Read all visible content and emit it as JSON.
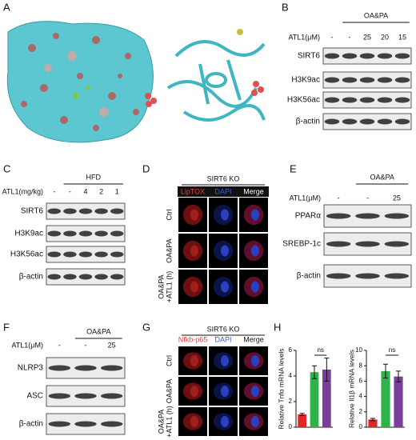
{
  "panels": {
    "A": {
      "label": "A"
    },
    "B": {
      "label": "B",
      "group": "OA&PA",
      "treatment": "ATL1(μM)",
      "lanes": [
        "-",
        "-",
        "25",
        "20",
        "15"
      ],
      "rows": [
        "SIRT6",
        "H3K9ac",
        "H3K56ac",
        "β-actin"
      ]
    },
    "C": {
      "label": "C",
      "group": "HFD",
      "treatment": "ATL1(mg/kg)",
      "lanes": [
        "-",
        "-",
        "4",
        "2",
        "1"
      ],
      "rows": [
        "SIRT6",
        "H3K9ac",
        "H3K56ac",
        "β-actin"
      ]
    },
    "D": {
      "label": "D",
      "group": "SIRT6 KO",
      "columns": [
        "LipTOX",
        "DAPI",
        "Merge"
      ],
      "rows": [
        [
          "Ctrl"
        ],
        [
          "OA&PA"
        ],
        [
          "OA&PA",
          "+ATL1 (h)"
        ]
      ]
    },
    "E": {
      "label": "E",
      "group": "OA&PA",
      "treatment": "ATL1(μM)",
      "lanes": [
        "-",
        "-",
        "25"
      ],
      "rows": [
        "PPARα",
        "SREBP-1c",
        "β-actin"
      ]
    },
    "F": {
      "label": "F",
      "group": "OA&PA",
      "treatment": "ATL1(μM)",
      "lanes": [
        "-",
        "-",
        "25"
      ],
      "rows": [
        "NLRP3",
        "ASC",
        "β-actin"
      ]
    },
    "G": {
      "label": "G",
      "group": "SIRT6 KO",
      "columns": [
        "Nfkb-p65",
        "DAPI",
        "Merge"
      ],
      "rows": [
        [
          "Ctrl"
        ],
        [
          "OA&PA"
        ],
        [
          "OA&PA",
          "+ATL1 (h)"
        ]
      ]
    },
    "H": {
      "label": "H"
    }
  },
  "chart_data": [
    {
      "type": "bar",
      "ylabel": "Relative Tnfα mRNA levels",
      "categories": [
        null,
        null,
        null
      ],
      "values": [
        1.0,
        4.3,
        4.5
      ],
      "errors": [
        0.08,
        0.5,
        0.9
      ],
      "colors": [
        "#e0262a",
        "#2db34a",
        "#7b3f99"
      ],
      "ylim": [
        0,
        6
      ],
      "yticks": [
        0,
        2,
        4,
        6
      ],
      "annotation": "ns"
    },
    {
      "type": "bar",
      "ylabel": "Relative Il1β mRNA levels",
      "categories": [
        null,
        null,
        null
      ],
      "values": [
        1.0,
        7.3,
        6.6
      ],
      "errors": [
        0.15,
        0.9,
        0.7
      ],
      "colors": [
        "#e0262a",
        "#2db34a",
        "#7b3f99"
      ],
      "ylim": [
        0,
        10
      ],
      "yticks": [
        0,
        2,
        4,
        6,
        8,
        10
      ],
      "annotation": "ns"
    }
  ]
}
